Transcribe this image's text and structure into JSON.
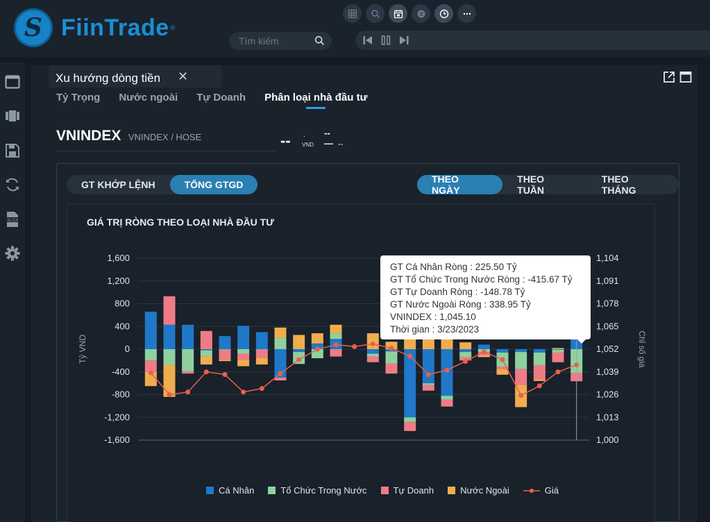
{
  "app": {
    "logo_text": "FiinTrade",
    "logo_reg": "®",
    "search_placeholder": "Tìm kiếm"
  },
  "top_icons": [
    "grid-icon",
    "zoom-icon",
    "calendar-icon",
    "coin-icon",
    "clock-icon",
    "more-icon"
  ],
  "player_icons": [
    "skip-back-icon",
    "pause-icon",
    "skip-forward-icon"
  ],
  "sidebar_icons": [
    "window-icon",
    "film-icon",
    "save-icon",
    "refresh-icon",
    "xlsx-icon",
    "settings-icon"
  ],
  "panel": {
    "tab_title": "Xu hướng dòng tiền",
    "tab_close": "✕",
    "subtabs": [
      "Tỷ Trọng",
      "Nước ngoài",
      "Tự Doanh",
      "Phân loại nhà đầu tư"
    ],
    "active_subtab": 3
  },
  "stock": {
    "code": "VNINDEX",
    "exchange": "VNINDEX / HOSE",
    "price": "--",
    "price_dot": ".",
    "price_unit": "VND",
    "change_top": "--",
    "change_bottom": "—",
    "change_pct": "--"
  },
  "controls": {
    "value_type": [
      "GT KHỚP LỆNH",
      "TỔNG GTGD"
    ],
    "value_type_active": 1,
    "period": [
      "THEO NGÀY",
      "THEO TUẦN",
      "THEO THÁNG"
    ],
    "period_active": 0
  },
  "tooltip": {
    "lines": [
      "GT Cá Nhân Ròng  : 225.50 Tỷ",
      "GT Tổ Chức Trong Nước Ròng : -415.67 Tỷ",
      "GT Tự Doanh Ròng : -148.78 Tỷ",
      "GT Nước Ngoài Ròng : 338.95 Tỷ",
      "VNINDEX : 1,045.10",
      "Thời gian : 3/23/2023"
    ]
  },
  "chart_data": {
    "type": "bar",
    "title": "GIÁ TRỊ RÒNG THEO LOẠI NHÀ ĐẦU TƯ",
    "ylabel": "Tỷ VND",
    "y2label": "Chỉ số giá",
    "ylim": [
      -1600,
      1600
    ],
    "y2lim": [
      1000,
      1104
    ],
    "yticks": [
      "1,600",
      "1,200",
      "800",
      "400",
      "0",
      "-400",
      "-800",
      "-1,200",
      "-1,600"
    ],
    "y2ticks": [
      "1,104",
      "1,091",
      "1,078",
      "1,065",
      "1,052",
      "1,039",
      "1,026",
      "1,013",
      "1,000"
    ],
    "stacked": true,
    "legend_position": "bottom",
    "colors": {
      "ca_nhan": "#1f78c8",
      "to_chuc": "#8fd19e",
      "tu_doanh": "#f07b87",
      "nuoc_ngoai": "#f0ad4e",
      "gia": "#e8604c"
    },
    "series": [
      {
        "name": "Cá Nhân",
        "values": [
          660,
          430,
          430,
          -20,
          230,
          410,
          300,
          -500,
          -50,
          100,
          180,
          0,
          -80,
          -40,
          -1200,
          -600,
          -820,
          -50,
          80,
          -60,
          -50,
          -60,
          -10,
          225.5
        ]
      },
      {
        "name": "Tổ Chức Trong Nước",
        "values": [
          -200,
          -280,
          -390,
          -110,
          -10,
          -80,
          -10,
          200,
          -210,
          -160,
          100,
          0,
          -50,
          -210,
          -80,
          -30,
          -70,
          -90,
          -50,
          -250,
          -300,
          -220,
          -50,
          -415.67
        ]
      },
      {
        "name": "Tự Doanh",
        "values": [
          -200,
          500,
          -40,
          320,
          -170,
          -110,
          -140,
          -50,
          0,
          0,
          -130,
          0,
          -100,
          -180,
          -160,
          -100,
          -120,
          -60,
          -60,
          -40,
          -280,
          -250,
          -170,
          -148.78
        ]
      },
      {
        "name": "Nước Ngoài",
        "values": [
          -250,
          -560,
          0,
          -140,
          -30,
          -110,
          -120,
          180,
          250,
          180,
          150,
          0,
          280,
          130,
          400,
          200,
          300,
          120,
          -30,
          -100,
          -390,
          -30,
          20,
          338.95
        ]
      }
    ],
    "line": {
      "name": "Giá",
      "values": [
        1038.5,
        1026,
        1027.5,
        1039,
        1037.5,
        1027.5,
        1029.5,
        1038,
        1046,
        1052,
        1054.5,
        1053.5,
        1055,
        1052.5,
        1048,
        1037.5,
        1040,
        1045,
        1050.5,
        1046,
        1025.5,
        1031,
        1039,
        1043
      ]
    }
  },
  "legend": [
    "Cá Nhân",
    "Tổ Chức Trong Nước",
    "Tự Doanh",
    "Nước Ngoài",
    "Giá"
  ]
}
